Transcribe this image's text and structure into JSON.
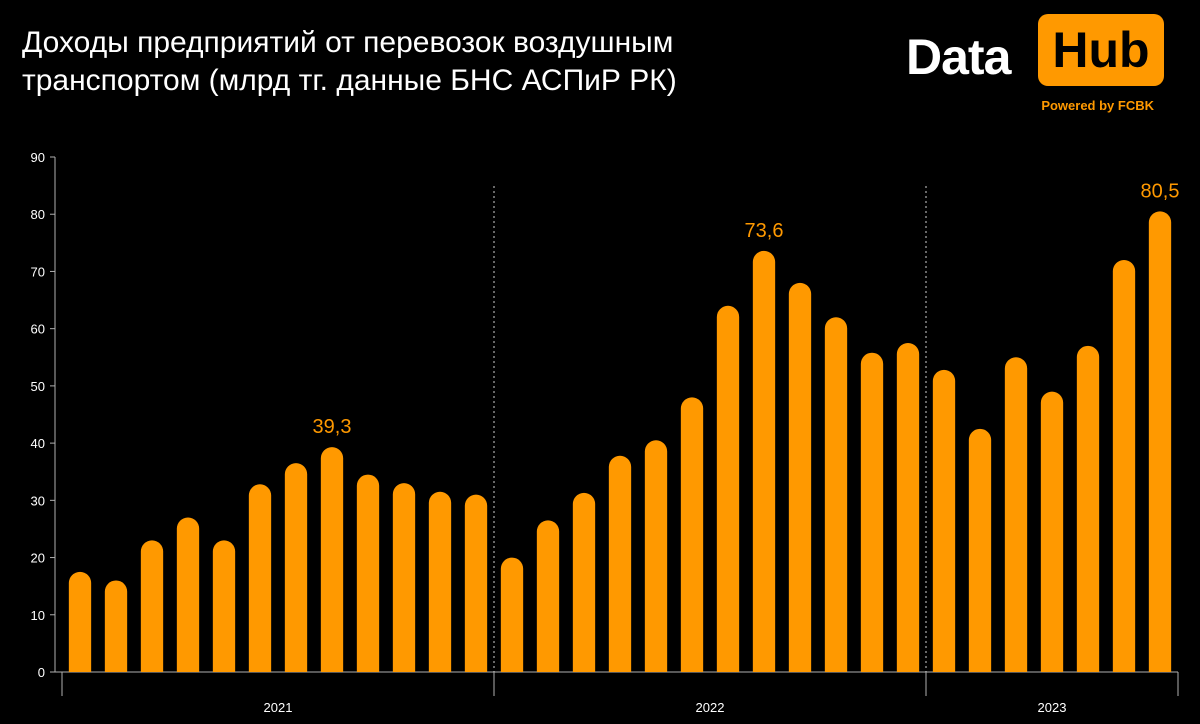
{
  "header": {
    "title_line1": "Доходы предприятий от перевозок воздушным",
    "title_line2": "транспортом (млрд тг. данные БНС АСПиР РК)"
  },
  "logo": {
    "word1": "Data",
    "word2": "Hub",
    "tagline": "Powered by FCBK"
  },
  "colors": {
    "background": "#000000",
    "bar": "#ff9900",
    "text": "#ffffff",
    "axis": "#b0b0b0"
  },
  "chart_data": {
    "type": "bar",
    "title": "Доходы предприятий от перевозок воздушным транспортом (млрд тг. данные БНС АСПиР РК)",
    "xlabel": "",
    "ylabel": "",
    "ylim": [
      0,
      90
    ],
    "yticks": [
      0,
      10,
      20,
      30,
      40,
      50,
      60,
      70,
      80,
      90
    ],
    "grid": false,
    "groups": [
      {
        "label": "2021",
        "values": [
          17.5,
          16.0,
          23.0,
          27.0,
          23.0,
          32.8,
          36.5,
          39.3,
          34.5,
          33.0,
          31.5,
          31.0
        ],
        "annotations": [
          {
            "index": 7,
            "text": "39,3"
          }
        ]
      },
      {
        "label": "2022",
        "values": [
          20.0,
          26.5,
          31.3,
          37.8,
          40.5,
          48.0,
          64.0,
          73.6,
          68.0,
          62.0,
          55.8,
          57.5
        ],
        "annotations": [
          {
            "index": 7,
            "text": "73,6"
          }
        ]
      },
      {
        "label": "2023",
        "values": [
          52.8,
          42.5,
          55.0,
          49.0,
          57.0,
          72.0,
          80.5
        ],
        "annotations": [
          {
            "index": 6,
            "text": "80,5"
          }
        ]
      }
    ]
  }
}
